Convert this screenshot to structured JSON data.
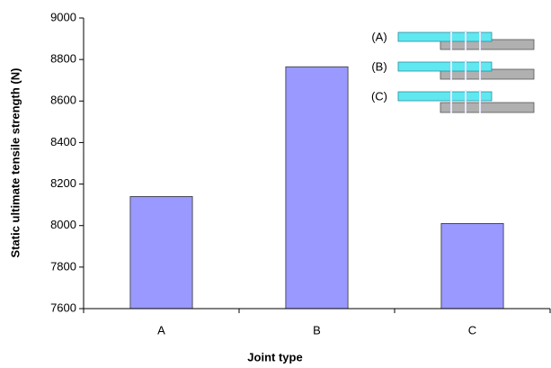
{
  "chart_data": {
    "type": "bar",
    "y_label": "Static ultimate tensile strength (N)",
    "x_label": "Joint type",
    "categories": [
      "A",
      "B",
      "C"
    ],
    "values": [
      8140,
      8765,
      8010
    ],
    "color": "#9999ff",
    "ylim": [
      7600,
      9000
    ],
    "yticks": [
      7600,
      7800,
      8000,
      8200,
      8400,
      8600,
      8800,
      9000
    ],
    "grid": false,
    "annotations": [
      "(A)",
      "(B)",
      "(C)"
    ]
  }
}
